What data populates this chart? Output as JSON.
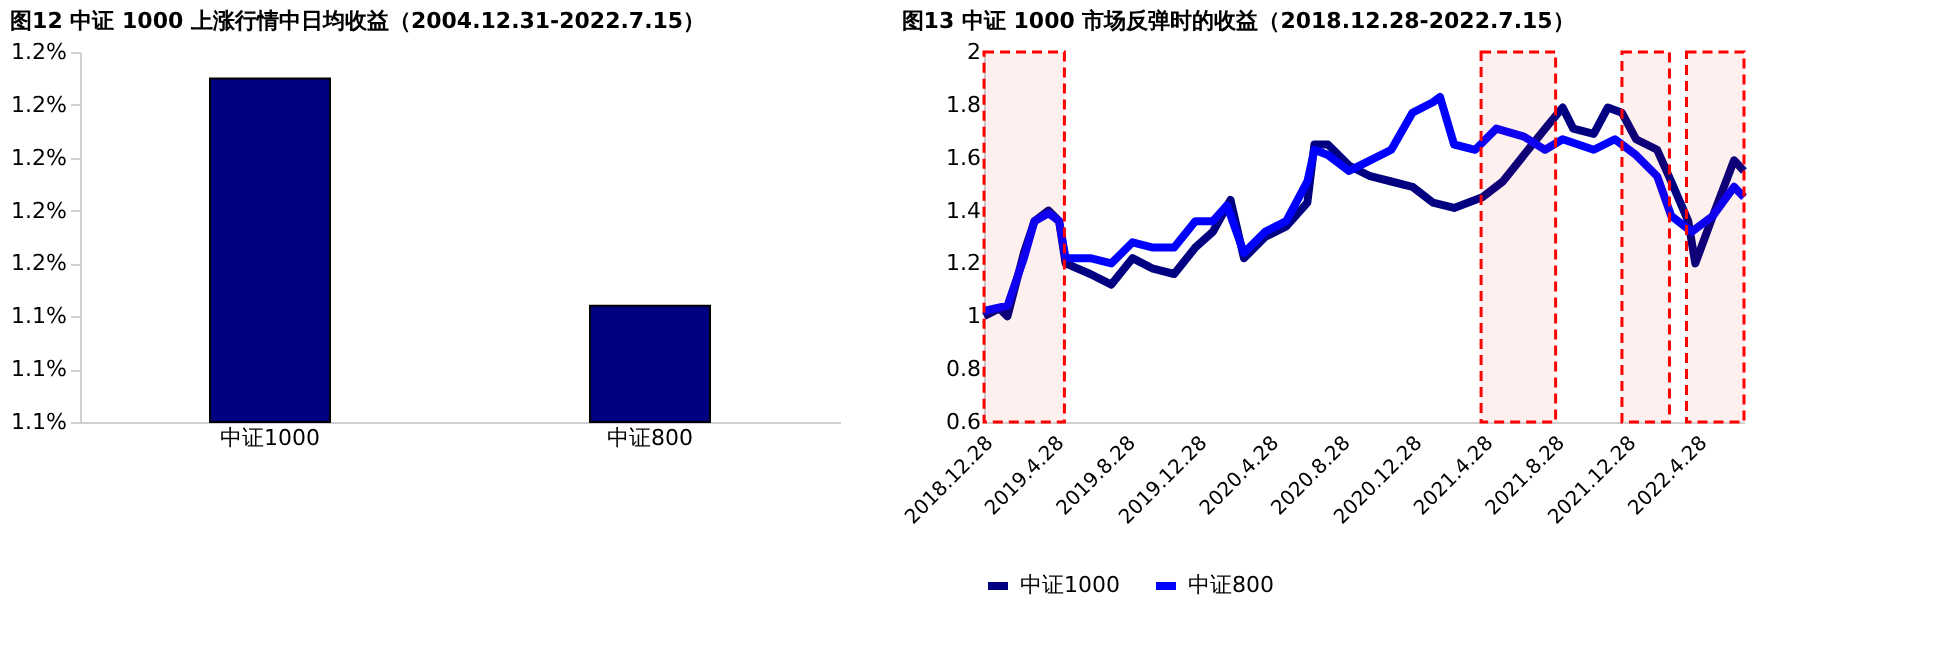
{
  "chart_data": [
    {
      "type": "bar",
      "title": "图12 中证 1000 上涨行情中日均收益（2004.12.31-2022.7.15）",
      "categories": [
        "中证1000",
        "中证800"
      ],
      "values": [
        1.185,
        1.142
      ],
      "color": "#000080",
      "ylim": [
        1.12,
        1.19
      ],
      "yticks": [
        {
          "value": 1.12,
          "label": "1.1%"
        },
        {
          "value": 1.13,
          "label": "1.1%"
        },
        {
          "value": 1.14,
          "label": "1.1%"
        },
        {
          "value": 1.15,
          "label": "1.2%"
        },
        {
          "value": 1.16,
          "label": "1.2%"
        },
        {
          "value": 1.17,
          "label": "1.2%"
        },
        {
          "value": 1.18,
          "label": "1.2%"
        },
        {
          "value": 1.19,
          "label": "1.2%"
        }
      ],
      "grid": false
    },
    {
      "type": "line",
      "title": "图13 中证 1000 市场反弹时的收益（2018.12.28-2022.7.15）",
      "ylim": [
        0.6,
        2
      ],
      "yticks": [
        0.6,
        0.8,
        1,
        1.2,
        1.4,
        1.6,
        1.8,
        2
      ],
      "xlim": [
        "2018-12-28",
        "2022-07-15"
      ],
      "xticks": [
        {
          "value": "2018-12-28",
          "label": "2018.12.28"
        },
        {
          "value": "2019-04-28",
          "label": "2019.4.28"
        },
        {
          "value": "2019-08-28",
          "label": "2019.8.28"
        },
        {
          "value": "2019-12-28",
          "label": "2019.12.28"
        },
        {
          "value": "2020-04-28",
          "label": "2020.4.28"
        },
        {
          "value": "2020-08-28",
          "label": "2020.8.28"
        },
        {
          "value": "2020-12-28",
          "label": "2020.12.28"
        },
        {
          "value": "2021-04-28",
          "label": "2021.4.28"
        },
        {
          "value": "2021-08-28",
          "label": "2021.8.28"
        },
        {
          "value": "2021-12-28",
          "label": "2021.12.28"
        },
        {
          "value": "2022-04-28",
          "label": "2022.4.28"
        }
      ],
      "grid": false,
      "legend": "bottom",
      "marker": "none",
      "line_style": "solid",
      "bands": [
        {
          "axis": "x",
          "from": "2018-12-28",
          "to": "2019-05-14",
          "color": "#ff0000"
        },
        {
          "axis": "x",
          "from": "2021-04-23",
          "to": "2021-08-28",
          "color": "#ff0000"
        },
        {
          "axis": "x",
          "from": "2021-12-19",
          "to": "2022-03-10",
          "color": "#ff0000"
        },
        {
          "axis": "x",
          "from": "2022-04-08",
          "to": "2022-07-15",
          "color": "#ff0000"
        }
      ],
      "series": [
        {
          "name": "中证1000",
          "color": "#000080",
          "x": [
            "2018-12-28",
            "2019-01-23",
            "2019-02-06",
            "2019-03-06",
            "2019-03-24",
            "2019-04-17",
            "2019-05-05",
            "2019-05-16",
            "2019-06-27",
            "2019-08-02",
            "2019-09-07",
            "2019-10-12",
            "2019-11-17",
            "2019-12-23",
            "2020-01-22",
            "2020-02-21",
            "2020-03-15",
            "2020-04-20",
            "2020-05-26",
            "2020-07-01",
            "2020-07-13",
            "2020-08-05",
            "2020-09-10",
            "2020-10-16",
            "2020-11-21",
            "2020-12-27",
            "2021-01-31",
            "2021-03-08",
            "2021-04-25",
            "2021-05-30",
            "2021-07-05",
            "2021-08-10",
            "2021-09-09",
            "2021-09-27",
            "2021-11-01",
            "2021-11-25",
            "2021-12-19",
            "2022-01-12",
            "2022-02-17",
            "2022-03-13",
            "2022-04-11",
            "2022-04-23",
            "2022-05-23",
            "2022-06-28",
            "2022-07-15"
          ],
          "values": [
            1.0,
            1.03,
            1.0,
            1.24,
            1.36,
            1.4,
            1.36,
            1.2,
            1.16,
            1.12,
            1.22,
            1.18,
            1.16,
            1.26,
            1.32,
            1.44,
            1.22,
            1.3,
            1.34,
            1.43,
            1.65,
            1.65,
            1.57,
            1.53,
            1.51,
            1.49,
            1.43,
            1.41,
            1.45,
            1.51,
            1.61,
            1.71,
            1.79,
            1.71,
            1.69,
            1.79,
            1.77,
            1.67,
            1.63,
            1.51,
            1.36,
            1.2,
            1.38,
            1.59,
            1.55
          ]
        },
        {
          "name": "中证800",
          "color": "#0000ff",
          "x": [
            "2018-12-28",
            "2019-02-06",
            "2019-03-06",
            "2019-03-24",
            "2019-04-17",
            "2019-05-05",
            "2019-05-16",
            "2019-06-27",
            "2019-08-02",
            "2019-09-07",
            "2019-10-12",
            "2019-11-17",
            "2019-12-23",
            "2020-01-22",
            "2020-02-15",
            "2020-03-15",
            "2020-04-20",
            "2020-05-26",
            "2020-07-01",
            "2020-07-13",
            "2020-08-05",
            "2020-09-10",
            "2020-10-16",
            "2020-11-21",
            "2020-12-27",
            "2021-01-31",
            "2021-02-12",
            "2021-03-08",
            "2021-04-13",
            "2021-05-19",
            "2021-07-05",
            "2021-08-10",
            "2021-09-09",
            "2021-11-01",
            "2021-12-07",
            "2022-01-12",
            "2022-02-17",
            "2022-03-13",
            "2022-04-17",
            "2022-05-23",
            "2022-06-28",
            "2022-07-15"
          ],
          "values": [
            1.02,
            1.04,
            1.22,
            1.36,
            1.39,
            1.36,
            1.22,
            1.22,
            1.2,
            1.28,
            1.26,
            1.26,
            1.36,
            1.36,
            1.42,
            1.24,
            1.32,
            1.36,
            1.51,
            1.63,
            1.61,
            1.55,
            1.59,
            1.63,
            1.77,
            1.81,
            1.83,
            1.65,
            1.63,
            1.71,
            1.68,
            1.63,
            1.67,
            1.63,
            1.67,
            1.61,
            1.53,
            1.38,
            1.32,
            1.38,
            1.49,
            1.45
          ]
        }
      ]
    }
  ]
}
